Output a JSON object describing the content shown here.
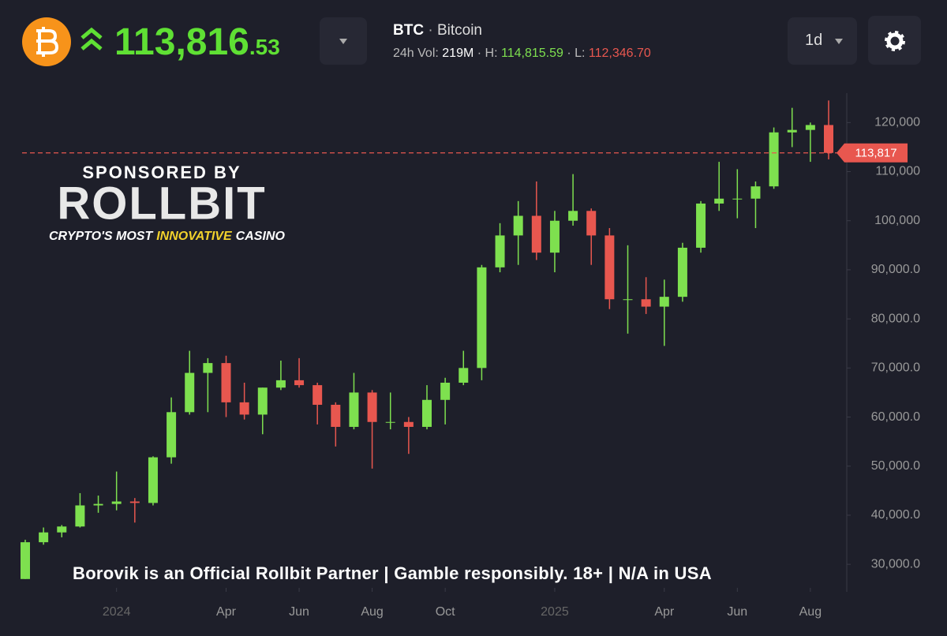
{
  "header": {
    "price_main": "113,816",
    "price_decimals": ".53",
    "symbol": "BTC",
    "separator": "·",
    "name": "Bitcoin",
    "vol_label": "24h Vol:",
    "vol_value": "219M",
    "high_label": "· H:",
    "high_value": "114,815.59",
    "low_label": "· L:",
    "low_value": "112,346.70",
    "interval": "1d"
  },
  "sponsor": {
    "line1": "SPONSORED BY",
    "brand": "ROLLBIT",
    "tag_a": "CRYPTO'S MOST",
    "tag_b": "INNOVATIVE",
    "tag_c": "CASINO"
  },
  "disclaimer": "Borovik is an Official Rollbit Partner | Gamble responsibly. 18+ | N/A in USA",
  "chart_data": {
    "type": "candlestick",
    "up_color": "#7ee04f",
    "down_color": "#e8574f",
    "categories": [
      null,
      null,
      null,
      null,
      null,
      "2024",
      null,
      null,
      null,
      null,
      null,
      "Apr",
      null,
      null,
      null,
      "Jun",
      null,
      null,
      null,
      "Aug",
      null,
      null,
      null,
      "Oct",
      null,
      null,
      null,
      null,
      null,
      "2025",
      null,
      null,
      null,
      null,
      null,
      "Apr",
      null,
      null,
      null,
      "Jun",
      null,
      null,
      null,
      "Aug",
      null
    ],
    "open": [
      27000,
      34500,
      36500,
      37700,
      42000,
      42300,
      42800,
      42500,
      51800,
      61000,
      69000,
      71000,
      63000,
      60500,
      66000,
      67500,
      66500,
      62500,
      58000,
      65000,
      59000,
      59000,
      58000,
      63500,
      67000,
      70000,
      90500,
      97000,
      101000,
      93500,
      100000,
      102000,
      97000,
      84000,
      84000,
      82500,
      84500,
      94500,
      103500,
      104500,
      104500,
      107000,
      118000,
      118500,
      119500
    ],
    "high": [
      35000,
      37500,
      38000,
      44500,
      44000,
      48900,
      43500,
      52000,
      64000,
      73500,
      72000,
      72500,
      67000,
      66000,
      71500,
      72000,
      67000,
      63000,
      69000,
      65500,
      65000,
      60000,
      66500,
      68000,
      73500,
      91000,
      99500,
      104000,
      108000,
      102000,
      109500,
      102500,
      98500,
      95000,
      88500,
      88000,
      95500,
      104000,
      112000,
      110500,
      108000,
      119000,
      123000,
      120000,
      124500
    ],
    "low": [
      27000,
      34000,
      35500,
      37500,
      40500,
      41000,
      38500,
      42000,
      50500,
      60500,
      61000,
      60000,
      59500,
      56500,
      65500,
      66000,
      58500,
      54000,
      57500,
      49500,
      57500,
      52500,
      57500,
      58500,
      66500,
      67500,
      89500,
      91000,
      92000,
      89500,
      99000,
      91000,
      82000,
      77000,
      81000,
      74500,
      83500,
      93500,
      102000,
      100500,
      98500,
      106500,
      115000,
      112000,
      112500
    ],
    "close": [
      34500,
      36500,
      37700,
      42000,
      42300,
      42800,
      42500,
      51800,
      61000,
      69000,
      71000,
      63000,
      60500,
      66000,
      67500,
      66500,
      62500,
      58000,
      65000,
      59000,
      59000,
      58000,
      63500,
      67000,
      70000,
      90500,
      97000,
      101000,
      93500,
      100000,
      102000,
      97000,
      84000,
      84000,
      82500,
      84500,
      94500,
      103500,
      104500,
      104500,
      107000,
      118000,
      118500,
      119500,
      113817
    ],
    "ylim": [
      25200,
      126000
    ],
    "yticks": [
      {
        "value": 30000,
        "label": "30,000.0"
      },
      {
        "value": 40000,
        "label": "40,000.0"
      },
      {
        "value": 50000,
        "label": "50,000.0"
      },
      {
        "value": 60000,
        "label": "60,000.0"
      },
      {
        "value": 70000,
        "label": "70,000.0"
      },
      {
        "value": 80000,
        "label": "80,000.0"
      },
      {
        "value": 90000,
        "label": "90,000.0"
      },
      {
        "value": 100000,
        "label": "100,000"
      },
      {
        "value": 110000,
        "label": "110,000"
      },
      {
        "value": 120000,
        "label": "120,000"
      }
    ],
    "price_line": {
      "value": 113817,
      "label": "113,817",
      "color": "#e8574f"
    }
  }
}
